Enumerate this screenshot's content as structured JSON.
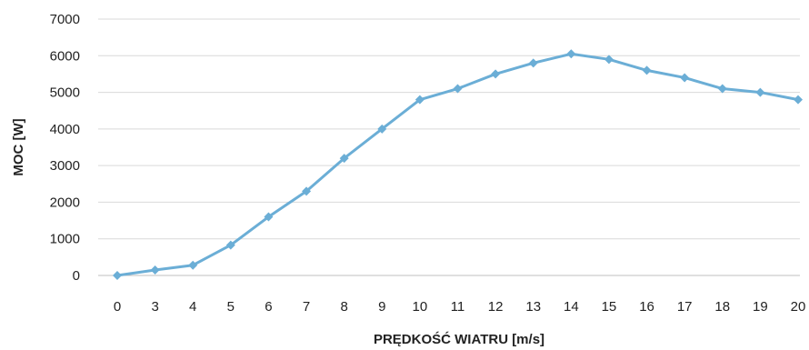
{
  "chart_data": {
    "type": "line",
    "xlabel": "PRĘDKOŚĆ WIATRU  [m/s]",
    "ylabel": "MOC [W]",
    "categories": [
      "0",
      "3",
      "4",
      "5",
      "6",
      "7",
      "8",
      "9",
      "10",
      "11",
      "12",
      "13",
      "14",
      "15",
      "16",
      "17",
      "18",
      "19",
      "20"
    ],
    "series": [
      {
        "values": [
          0,
          150,
          280,
          830,
          1600,
          2300,
          3200,
          4000,
          4800,
          5100,
          5500,
          5800,
          6050,
          5900,
          5600,
          5400,
          5100,
          5000,
          4800
        ],
        "color": "#6baed6"
      }
    ],
    "ylim": [
      0,
      7000
    ],
    "yticks": [
      "0",
      "1000",
      "2000",
      "3000",
      "4000",
      "5000",
      "6000",
      "7000"
    ],
    "grid": true,
    "legend": "none",
    "marker": "diamond"
  }
}
